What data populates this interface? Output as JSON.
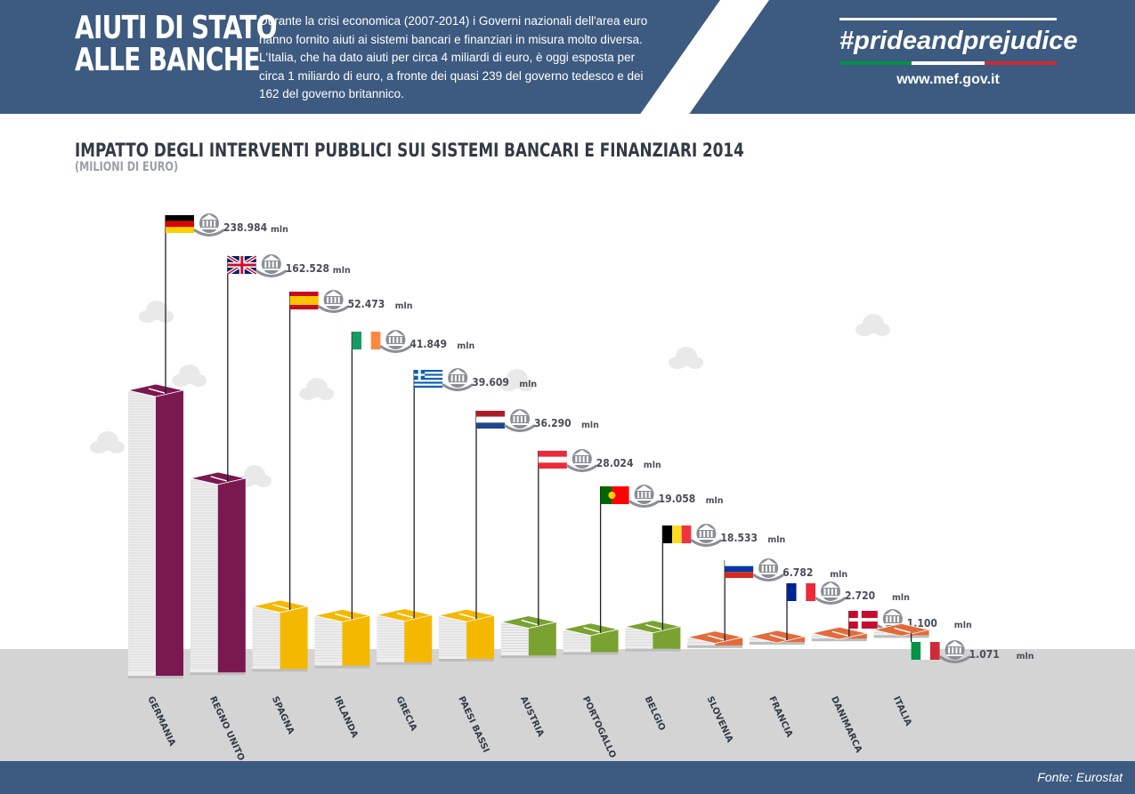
{
  "header": {
    "title_line1": "AIUTI DI STATO",
    "title_line2": "ALLE BANCHE",
    "intro": "Durante la crisi economica (2007-2014) i Governi nazionali dell'area euro hanno fornito aiuti ai sistemi bancari e finanziari in misura molto diversa. L'Italia, che ha dato aiuti per circa 4 miliardi di euro, è oggi esposta per circa 1 miliardo di euro, a fronte dei quasi 239 del governo tedesco e dei 162 del governo britannico.",
    "hashtag": "#prideandprejudice",
    "url": "www.mef.gov.it"
  },
  "colors": {
    "header_bg": "#3d5a80",
    "purple": "#7a1850",
    "yellow": "#f5b800",
    "green": "#7aa231",
    "orange": "#e36b3b",
    "ground": "#d4d4d4",
    "italy_green": "#009246",
    "italy_red": "#ce2b37"
  },
  "chart_data": {
    "type": "bar",
    "title": "IMPATTO DEGLI INTERVENTI PUBBLICI SUI SISTEMI BANCARI E FINANZIARI 2014",
    "subtitle": "(MILIONI DI EURO)",
    "unit": "mln",
    "categories": [
      "GERMANIA",
      "REGNO UNITO",
      "SPAGNA",
      "IRLANDA",
      "GRECIA",
      "PAESI BASSI",
      "AUSTRIA",
      "PORTOGALLO",
      "BELGIO",
      "SLOVENIA",
      "FRANCIA",
      "DANIMARCA",
      "ITALIA"
    ],
    "values": [
      238984,
      162528,
      52473,
      41849,
      39609,
      36290,
      28024,
      19058,
      18533,
      6782,
      2720,
      1100,
      1071
    ],
    "value_labels": [
      "238.984",
      "162.528",
      "52.473",
      "41.849",
      "39.609",
      "36.290",
      "28.024",
      "19.058",
      "18.533",
      "6.782",
      "2.720",
      "1.100",
      "1.071"
    ],
    "flags": [
      "de",
      "gb",
      "es",
      "ie",
      "gr",
      "nl",
      "at",
      "pt",
      "be",
      "ru",
      "fr",
      "dk",
      "it"
    ],
    "bar_colors": [
      "purple",
      "purple",
      "yellow",
      "yellow",
      "yellow",
      "yellow",
      "green",
      "green",
      "green",
      "orange",
      "orange",
      "orange",
      "orange"
    ]
  },
  "footer": {
    "source": "Fonte: Eurostat"
  }
}
